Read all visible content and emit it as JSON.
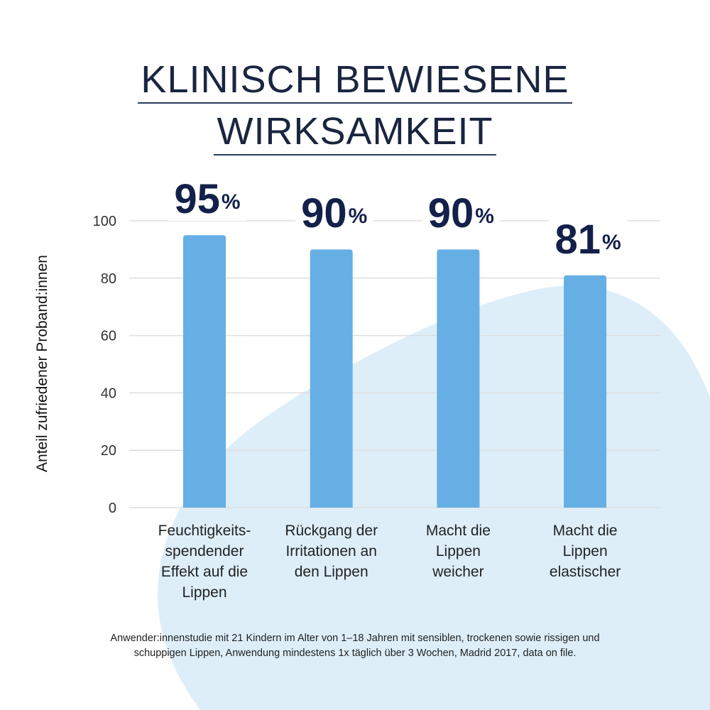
{
  "title": {
    "line1": "KLINISCH BEWIESENE",
    "line2": "WIRKSAMKEIT"
  },
  "colors": {
    "bar": "#65afe5",
    "title": "#13204a",
    "value_label": "#13204a",
    "background_blob": "#ddeef9",
    "gridline": "#dedede"
  },
  "chart_data": {
    "type": "bar",
    "title": "KLINISCH BEWIESENE WIRKSAMKEIT",
    "xlabel": "",
    "ylabel": "Anteil zufriedener Proband:innen",
    "ylim": [
      0,
      100
    ],
    "yticks": [
      0,
      20,
      40,
      60,
      80,
      100
    ],
    "grid": true,
    "categories": [
      "Feuchtigkeits-spendender Effekt auf die Lippen",
      "Rückgang der Irritationen an den Lippen",
      "Macht die Lippen weicher",
      "Macht die Lippen elastischer"
    ],
    "category_lines": [
      [
        "Feuchtigkeits-",
        "spendender",
        "Effekt auf die",
        "Lippen"
      ],
      [
        "Rückgang der",
        "Irritationen an",
        "den Lippen"
      ],
      [
        "Macht die",
        "Lippen",
        "weicher"
      ],
      [
        "Macht die",
        "Lippen",
        "elastischer"
      ]
    ],
    "values": [
      95,
      90,
      90,
      81
    ],
    "value_labels": [
      "95",
      "90",
      "90",
      "81"
    ],
    "value_suffix": "%"
  },
  "footnote": {
    "line1": "Anwender:innenstudie mit 21 Kindern im Alter von 1–18 Jahren mit sensiblen, trockenen sowie rissigen und",
    "line2": "schuppigen Lippen, Anwendung mindestens 1x täglich über 3 Wochen, Madrid 2017, data on file."
  }
}
